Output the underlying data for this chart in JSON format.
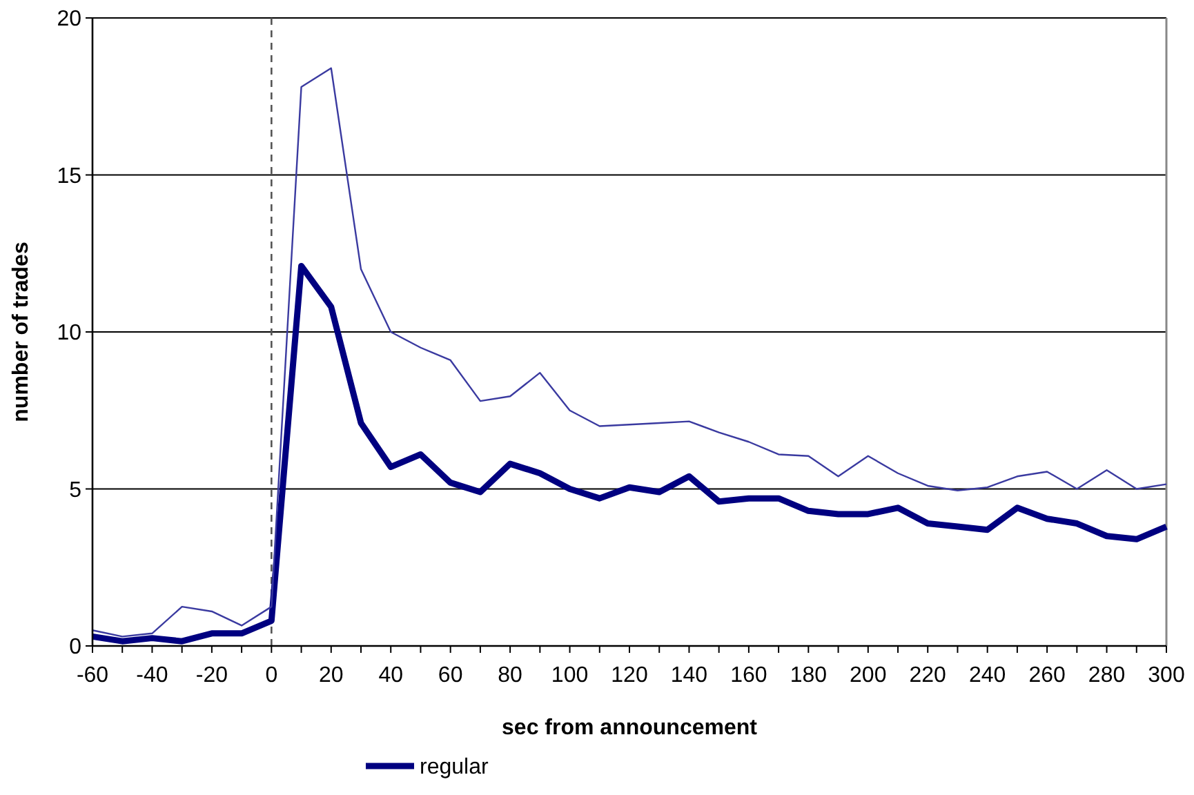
{
  "chart_data": {
    "type": "line",
    "xlabel": "sec from announcement",
    "ylabel": "number of trades",
    "x": [
      -60,
      -50,
      -40,
      -30,
      -20,
      -10,
      0,
      10,
      20,
      30,
      40,
      50,
      60,
      70,
      80,
      90,
      100,
      110,
      120,
      130,
      140,
      150,
      160,
      170,
      180,
      190,
      200,
      210,
      220,
      230,
      240,
      250,
      260,
      270,
      280,
      290,
      300
    ],
    "series": [
      {
        "name": "regular",
        "color": "#000080",
        "values": [
          0.3,
          0.15,
          0.25,
          0.15,
          0.4,
          0.4,
          0.8,
          12.1,
          10.8,
          7.1,
          5.7,
          6.1,
          5.2,
          4.9,
          5.8,
          5.5,
          5.0,
          4.7,
          5.05,
          4.9,
          5.4,
          4.6,
          4.7,
          4.7,
          4.3,
          4.2,
          4.2,
          4.4,
          3.9,
          3.8,
          3.7,
          4.4,
          4.05,
          3.9,
          3.5,
          3.4,
          3.8
        ]
      },
      {
        "color": "#3a3aa0",
        "values": [
          0.5,
          0.3,
          0.4,
          1.25,
          1.1,
          0.65,
          1.25,
          17.8,
          18.4,
          12.0,
          10.0,
          9.5,
          9.1,
          7.8,
          7.95,
          8.7,
          7.5,
          7.0,
          7.05,
          7.1,
          7.15,
          6.8,
          6.5,
          6.1,
          6.05,
          5.4,
          6.05,
          5.5,
          5.1,
          4.95,
          5.05,
          5.4,
          5.55,
          5.0,
          5.6,
          5.0,
          5.15
        ]
      }
    ],
    "xlim": [
      -60,
      300
    ],
    "xticks": [
      -60,
      {
        "value": -50,
        "label": null
      },
      -40,
      {
        "value": -30,
        "label": null
      },
      -20,
      {
        "value": -10,
        "label": null
      },
      0,
      {
        "value": 10,
        "label": null
      },
      20,
      {
        "value": 30,
        "label": null
      },
      40,
      {
        "value": 50,
        "label": null
      },
      60,
      {
        "value": 70,
        "label": null
      },
      80,
      {
        "value": 90,
        "label": null
      },
      100,
      {
        "value": 110,
        "label": null
      },
      120,
      {
        "value": 130,
        "label": null
      },
      140,
      {
        "value": 150,
        "label": null
      },
      160,
      {
        "value": 170,
        "label": null
      },
      180,
      {
        "value": 190,
        "label": null
      },
      200,
      {
        "value": 210,
        "label": null
      },
      220,
      {
        "value": 230,
        "label": null
      },
      240,
      {
        "value": 250,
        "label": null
      },
      260,
      {
        "value": 270,
        "label": null
      },
      280,
      {
        "value": 290,
        "label": null
      },
      300
    ],
    "ylim": [
      0,
      20
    ],
    "yticks": [
      0,
      5,
      10,
      15,
      20
    ],
    "grid": "y",
    "legend": "bottom",
    "marker": "none",
    "line_style": "solid",
    "ref_lines": [
      {
        "axis": "x",
        "value": 0,
        "color": "#555555",
        "line_style": "dashed"
      }
    ]
  }
}
